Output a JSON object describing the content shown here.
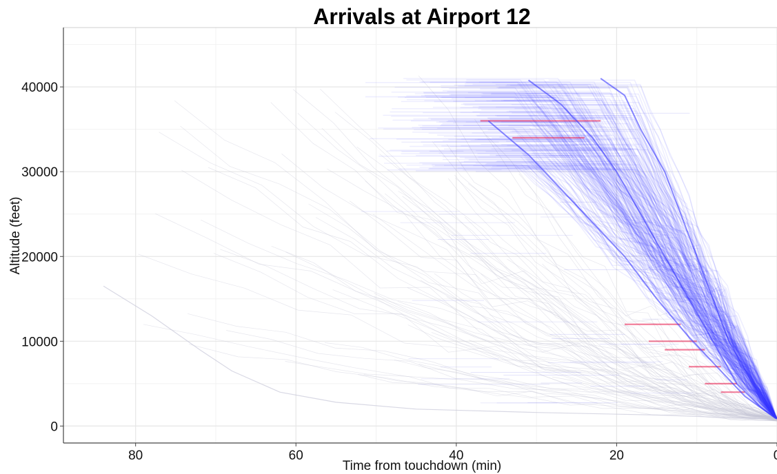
{
  "chart_data": {
    "type": "line",
    "title": "Arrivals at Airport 12",
    "xlabel": "Time from touchdown (min)",
    "ylabel": "Altitude (feet)",
    "x_reversed": true,
    "xlim": [
      0,
      89
    ],
    "ylim": [
      -2000,
      47000
    ],
    "x_ticks": [
      80,
      60,
      40,
      20,
      0
    ],
    "y_ticks": [
      0,
      10000,
      20000,
      30000,
      40000
    ],
    "grid": true,
    "legend": "none",
    "series": [
      {
        "role": "typical-descent-profile",
        "points": [
          [
            31,
            40800
          ],
          [
            27,
            38000
          ],
          [
            23,
            34000
          ],
          [
            20,
            30000
          ],
          [
            17,
            25000
          ],
          [
            14,
            20000
          ],
          [
            11,
            15000
          ],
          [
            8,
            10000
          ],
          [
            5,
            5000
          ],
          [
            2,
            2200
          ],
          [
            0,
            800
          ]
        ]
      },
      {
        "role": "early-descent-profile",
        "points": [
          [
            36,
            36000
          ],
          [
            31,
            32000
          ],
          [
            27,
            28000
          ],
          [
            23,
            24000
          ],
          [
            19,
            20000
          ],
          [
            15,
            15000
          ],
          [
            11,
            10500
          ],
          [
            7,
            6500
          ],
          [
            4,
            3500
          ],
          [
            0,
            800
          ]
        ]
      },
      {
        "role": "late-descent-profile",
        "points": [
          [
            22,
            41000
          ],
          [
            19,
            39000
          ],
          [
            17,
            35000
          ],
          [
            14,
            30000
          ],
          [
            12,
            25000
          ],
          [
            10,
            20000
          ],
          [
            8,
            15000
          ],
          [
            6,
            10000
          ],
          [
            3,
            5000
          ],
          [
            0,
            800
          ]
        ]
      },
      {
        "role": "long-straggler-profile",
        "points": [
          [
            84,
            16500
          ],
          [
            78,
            13000
          ],
          [
            72,
            9000
          ],
          [
            68,
            6500
          ],
          [
            62,
            4000
          ],
          [
            55,
            2800
          ],
          [
            45,
            2000
          ],
          [
            30,
            1600
          ],
          [
            15,
            1300
          ],
          [
            0,
            800
          ]
        ]
      }
    ],
    "level_segments": [
      {
        "x_start": 37,
        "x_end": 30,
        "y": 36000
      },
      {
        "x_start": 33,
        "x_end": 24,
        "y": 34000
      },
      {
        "x_start": 30,
        "x_end": 22,
        "y": 36000
      },
      {
        "x_start": 19,
        "x_end": 12,
        "y": 12000
      },
      {
        "x_start": 16,
        "x_end": 10,
        "y": 10000
      },
      {
        "x_start": 14,
        "x_end": 9,
        "y": 9000
      },
      {
        "x_start": 11,
        "x_end": 7,
        "y": 7000
      },
      {
        "x_start": 9,
        "x_end": 5,
        "y": 5000
      },
      {
        "x_start": 7,
        "x_end": 4,
        "y": 4000
      }
    ],
    "colors": {
      "dense_traces": "#3a3aff",
      "holding_highlight": "#e8184a",
      "sparse_traces": "#c8c8d8",
      "grid": "#e6e6e6",
      "axis": "#444444"
    }
  }
}
